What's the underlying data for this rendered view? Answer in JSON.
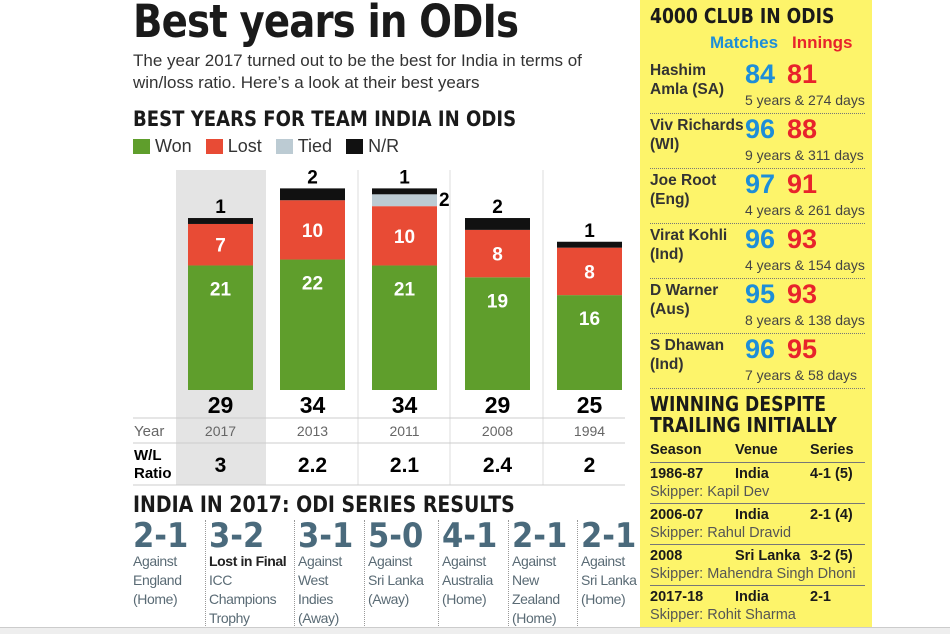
{
  "title": "Best years in ODIs",
  "subtitle": "The year 2017 turned out to be the best for India in terms of win/loss ratio. Here’s a look at their best years",
  "chart_data": {
    "type": "bar",
    "stacked": true,
    "title": "BEST YEARS FOR TEAM INDIA IN ODIS",
    "categories": [
      "2017",
      "2013",
      "2011",
      "2008",
      "1994"
    ],
    "series": [
      {
        "name": "Won",
        "color": "#5f9e2c",
        "values": [
          21,
          22,
          21,
          19,
          16
        ]
      },
      {
        "name": "Lost",
        "color": "#e84b35",
        "values": [
          7,
          10,
          10,
          8,
          8
        ]
      },
      {
        "name": "Tied",
        "color": "#bccbd3",
        "values": [
          0,
          0,
          2,
          0,
          0
        ]
      },
      {
        "name": "N/R",
        "color": "#111111",
        "values": [
          1,
          2,
          1,
          2,
          1
        ]
      }
    ],
    "totals": [
      "29",
      "34",
      "34",
      "29",
      "25"
    ],
    "row_labels": {
      "year": "Year",
      "ratio": "W/L Ratio"
    },
    "wl_ratio": [
      "3",
      "2.2",
      "2.1",
      "2.4",
      "2"
    ],
    "highlight": "2017"
  },
  "series_results": {
    "title": "INDIA IN 2017: ODI SERIES RESULTS",
    "items": [
      {
        "score": "2-1",
        "lines": [
          "Against",
          "England",
          "(Home)"
        ]
      },
      {
        "score": "3-2",
        "lead": "Lost in Final",
        "lines": [
          "ICC",
          "Champions",
          "Trophy"
        ]
      },
      {
        "score": "3-1",
        "lines": [
          "Against",
          "West",
          "Indies",
          "(Away)"
        ]
      },
      {
        "score": "5-0",
        "lines": [
          "Against",
          "Sri Lanka",
          "(Away)"
        ]
      },
      {
        "score": "4-1",
        "lines": [
          "Against",
          "Australia",
          "(Home)"
        ]
      },
      {
        "score": "2-1",
        "lines": [
          "Against",
          "New",
          "Zealand",
          "(Home)"
        ]
      },
      {
        "score": "2-1",
        "lines": [
          "Against",
          "Sri Lanka",
          "(Home)"
        ]
      }
    ]
  },
  "club": {
    "title": "4000 CLUB IN ODIS",
    "matches_label": "Matches",
    "innings_label": "Innings",
    "rows": [
      {
        "name": "Hashim Amla (SA)",
        "matches": "84",
        "innings": "81",
        "duration": "5 years & 274 days"
      },
      {
        "name": "Viv Richards (WI)",
        "matches": "96",
        "innings": "88",
        "duration": "9 years & 311 days"
      },
      {
        "name": "Joe Root (Eng)",
        "matches": "97",
        "innings": "91",
        "duration": "4 years & 261 days"
      },
      {
        "name": "Virat Kohli (Ind)",
        "matches": "96",
        "innings": "93",
        "duration": "4 years & 154 days"
      },
      {
        "name": "D Warner (Aus)",
        "matches": "95",
        "innings": "93",
        "duration": "8 years & 138 days"
      },
      {
        "name": "S Dhawan (Ind)",
        "matches": "96",
        "innings": "95",
        "duration": "7 years & 58 days"
      }
    ]
  },
  "trailing": {
    "title1": "WINNING DESPITE",
    "title2": "TRAILING INITIALLY",
    "headers": [
      "Season",
      "Venue",
      "Series"
    ],
    "rows": [
      {
        "season": "1986-87",
        "venue": "India",
        "series": "4-1 (5)",
        "skipper": "Skipper: Kapil Dev"
      },
      {
        "season": "2006-07",
        "venue": "India",
        "series": "2-1 (4)",
        "skipper": "Skipper: Rahul Dravid"
      },
      {
        "season": "2008",
        "venue": "Sri Lanka",
        "series": "3-2 (5)",
        "skipper": "Skipper: Mahendra Singh Dhoni"
      },
      {
        "season": "2017-18",
        "venue": "India",
        "series": "2-1",
        "skipper": "Skipper: Rohit Sharma"
      }
    ]
  }
}
